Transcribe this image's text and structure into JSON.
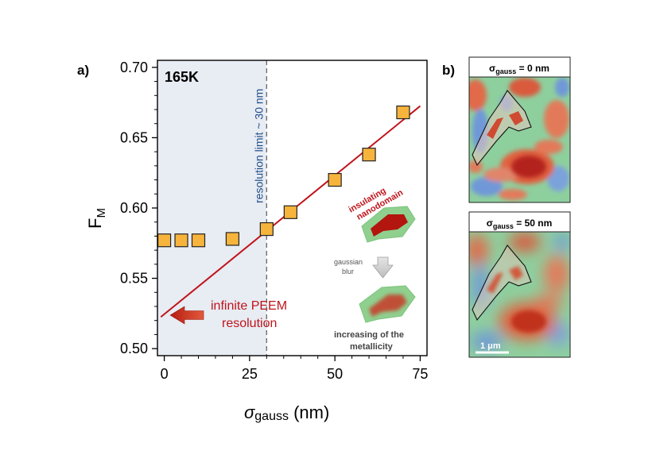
{
  "figure": {
    "panel_a_label": "a)",
    "panel_b_label": "b)"
  },
  "chart_data": {
    "type": "scatter",
    "temperature_label": "165K",
    "xlabel_symbol": "σ",
    "xlabel_subscript": "gauss",
    "xlabel_unit": " (nm)",
    "ylabel_main": "F",
    "ylabel_subscript": "M",
    "xlim": [
      -2,
      77
    ],
    "ylim": [
      0.495,
      0.705
    ],
    "x_ticks": [
      0,
      25,
      50,
      75
    ],
    "y_ticks": [
      0.5,
      0.55,
      0.6,
      0.65,
      0.7
    ],
    "y_tick_labels": [
      "0.50",
      "0.55",
      "0.60",
      "0.65",
      "0.70"
    ],
    "series": [
      {
        "name": "F_M vs sigma_gauss",
        "marker": "square",
        "color": "#F7B43C",
        "x": [
          0,
          5,
          10,
          20,
          30,
          37,
          50,
          60,
          70
        ],
        "y": [
          0.577,
          0.577,
          0.577,
          0.578,
          0.585,
          0.597,
          0.62,
          0.638,
          0.668
        ]
      }
    ],
    "fit_line": {
      "color": "#C0141B",
      "x": [
        -1,
        75
      ],
      "y": [
        0.5225,
        0.6725
      ]
    },
    "resolution_limit": {
      "x": 30,
      "label": "resolution limit ~ 30 nm",
      "shade_color": "#E8ECF3"
    },
    "annotations": {
      "infinite_line1": "infinite PEEM",
      "infinite_line2": "resolution",
      "insulating_line1": "insulating",
      "insulating_line2": "nanodomain",
      "blur_line1": "gaussian",
      "blur_line2": "blur",
      "metallicity_line1": "increasing of the",
      "metallicity_line2": "metallicity"
    }
  },
  "panel_b": {
    "top_title_symbol": "σ",
    "top_title_sub": "gauss",
    "top_title_value": " = 0 nm",
    "bottom_title_symbol": "σ",
    "bottom_title_sub": "gauss",
    "bottom_title_value": " = 50 nm",
    "scalebar_label": "1 μm"
  },
  "colors": {
    "fit": "#C0141B",
    "marker_fill": "#F7B43C",
    "resolution_text": "#1F4E89",
    "annotation_red": "#C0141B",
    "shade": "#E8ECF3",
    "map_green": "#8ECF9E",
    "map_red": "#D9412C",
    "map_blue": "#5E8FD6"
  }
}
